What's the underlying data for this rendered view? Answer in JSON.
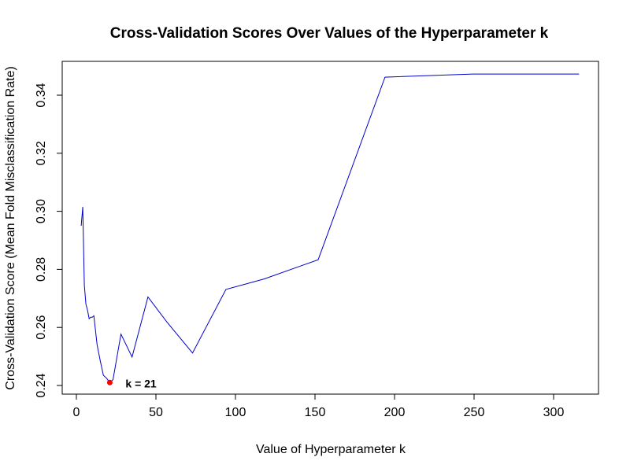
{
  "chart_data": {
    "type": "line",
    "title": "Cross-Validation Scores Over Values of the Hyperparameter k",
    "xlabel": "Value of Hyperparameter k",
    "ylabel": "Cross-Validation Score (Mean Fold Misclassification Rate)",
    "xlim": [
      0,
      320
    ],
    "ylim": [
      0.24,
      0.347
    ],
    "x_ticks": [
      0,
      50,
      100,
      150,
      200,
      250,
      300
    ],
    "x_tick_labels": [
      "0",
      "50",
      "100",
      "150",
      "200",
      "250",
      "300"
    ],
    "y_ticks": [
      0.24,
      0.26,
      0.28,
      0.3,
      0.32,
      0.34
    ],
    "y_tick_labels": [
      "0.24",
      "0.26",
      "0.28",
      "0.30",
      "0.32",
      "0.34"
    ],
    "grid": false,
    "series": [
      {
        "color": "#0000cc",
        "x": [
          3,
          4,
          5,
          6,
          7,
          8,
          9,
          10,
          11,
          13,
          15,
          17,
          19,
          21,
          23,
          28,
          35,
          45,
          57,
          73,
          94,
          118,
          152,
          194,
          249,
          316
        ],
        "y": [
          0.295,
          0.3015,
          0.2745,
          0.268,
          0.266,
          0.263,
          0.2635,
          0.2635,
          0.264,
          0.254,
          0.2485,
          0.2435,
          0.2425,
          0.241,
          0.242,
          0.2577,
          0.2498,
          0.2705,
          0.2618,
          0.2512,
          0.2731,
          0.2767,
          0.2833,
          0.3462,
          0.3473,
          0.3473
        ]
      }
    ],
    "highlight": {
      "x": 21,
      "y": 0.241,
      "label": "k = 21",
      "color": "#ff0000"
    }
  }
}
